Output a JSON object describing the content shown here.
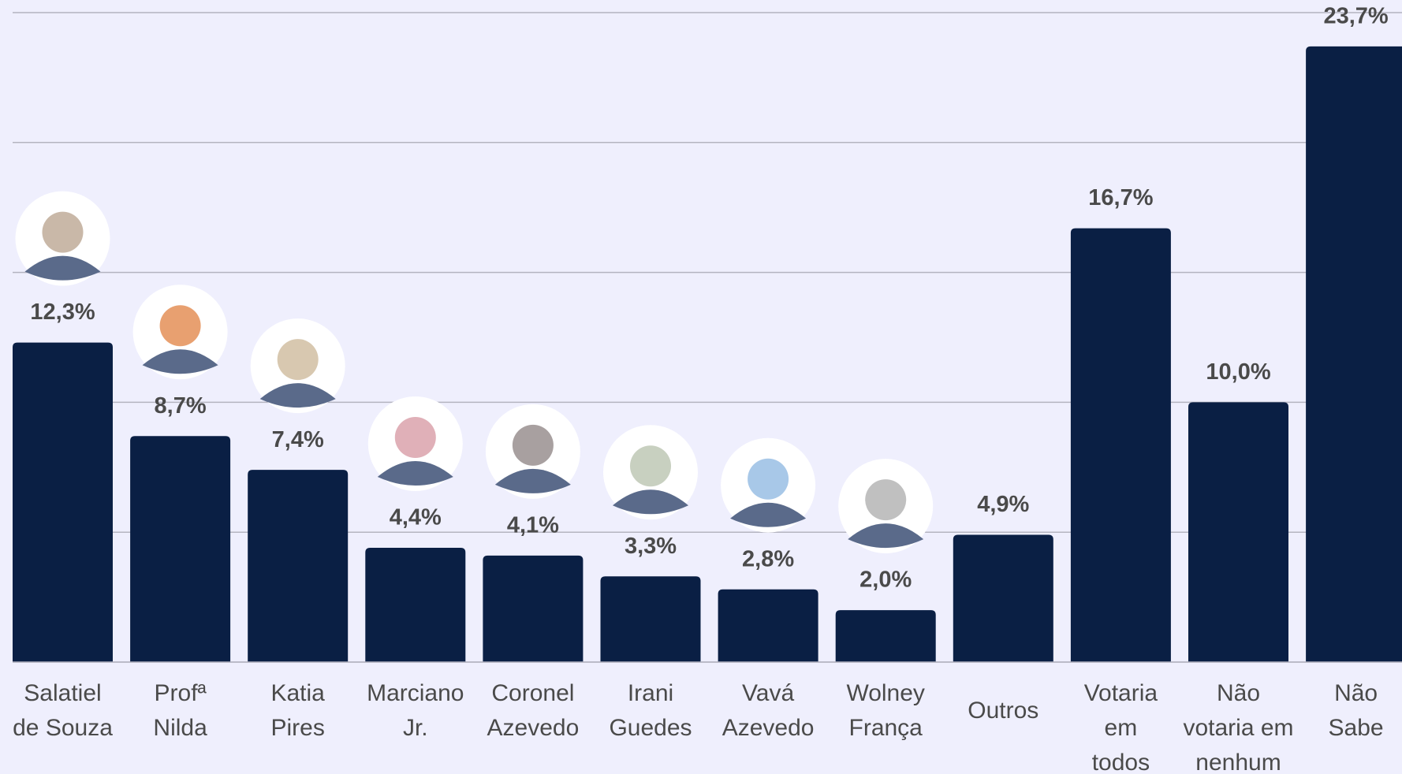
{
  "chart_data": {
    "type": "bar",
    "categories": [
      "Salatiel\nde Souza",
      "Profª\nNilda",
      "Katia\nPires",
      "Marciano\nJr.",
      "Coronel\nAzevedo",
      "Irani\nGuedes",
      "Vavá\nAzevedo",
      "Wolney\nFrança",
      "Outros",
      "Votaria\nem\ntodos",
      "Não\nvotaria em\nnenhum",
      "Não\nSabe"
    ],
    "values": [
      12.3,
      8.7,
      7.4,
      4.4,
      4.1,
      3.3,
      2.8,
      2.0,
      4.9,
      16.7,
      10.0,
      23.7
    ],
    "value_labels": [
      "12,3%",
      "8,7%",
      "7,4%",
      "4,4%",
      "4,1%",
      "3,3%",
      "2,8%",
      "2,0%",
      "4,9%",
      "16,7%",
      "10,0%",
      "23,7%"
    ],
    "color": "#0a1f44",
    "ylim": [
      0,
      25
    ],
    "yticks": [
      0,
      5,
      10,
      15,
      20,
      25
    ],
    "grid": true
  }
}
